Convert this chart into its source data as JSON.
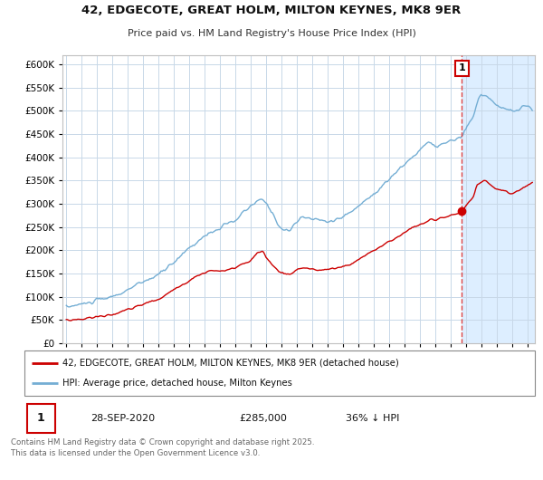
{
  "title": "42, EDGECOTE, GREAT HOLM, MILTON KEYNES, MK8 9ER",
  "subtitle": "Price paid vs. HM Land Registry's House Price Index (HPI)",
  "legend1": "42, EDGECOTE, GREAT HOLM, MILTON KEYNES, MK8 9ER (detached house)",
  "legend2": "HPI: Average price, detached house, Milton Keynes",
  "annotation_label": "1",
  "annotation_date": "28-SEP-2020",
  "annotation_price": "£285,000",
  "annotation_hpi": "36% ↓ HPI",
  "footer": "Contains HM Land Registry data © Crown copyright and database right 2025.\nThis data is licensed under the Open Government Licence v3.0.",
  "red_color": "#cc0000",
  "blue_color": "#74aed4",
  "sale_dot_color": "#cc0000",
  "vline_color": "#dd4444",
  "shade_color": "#ddeeff",
  "ylim": [
    0,
    620000
  ],
  "yticks": [
    0,
    50000,
    100000,
    150000,
    200000,
    250000,
    300000,
    350000,
    400000,
    450000,
    500000,
    550000,
    600000
  ],
  "xlim_start": 1994.75,
  "xlim_end": 2025.5,
  "sale_year": 2020.75,
  "sale_value": 285000,
  "bg_color": "#ffffff",
  "grid_color": "#c8d8e8",
  "spine_color": "#c0c0c0"
}
